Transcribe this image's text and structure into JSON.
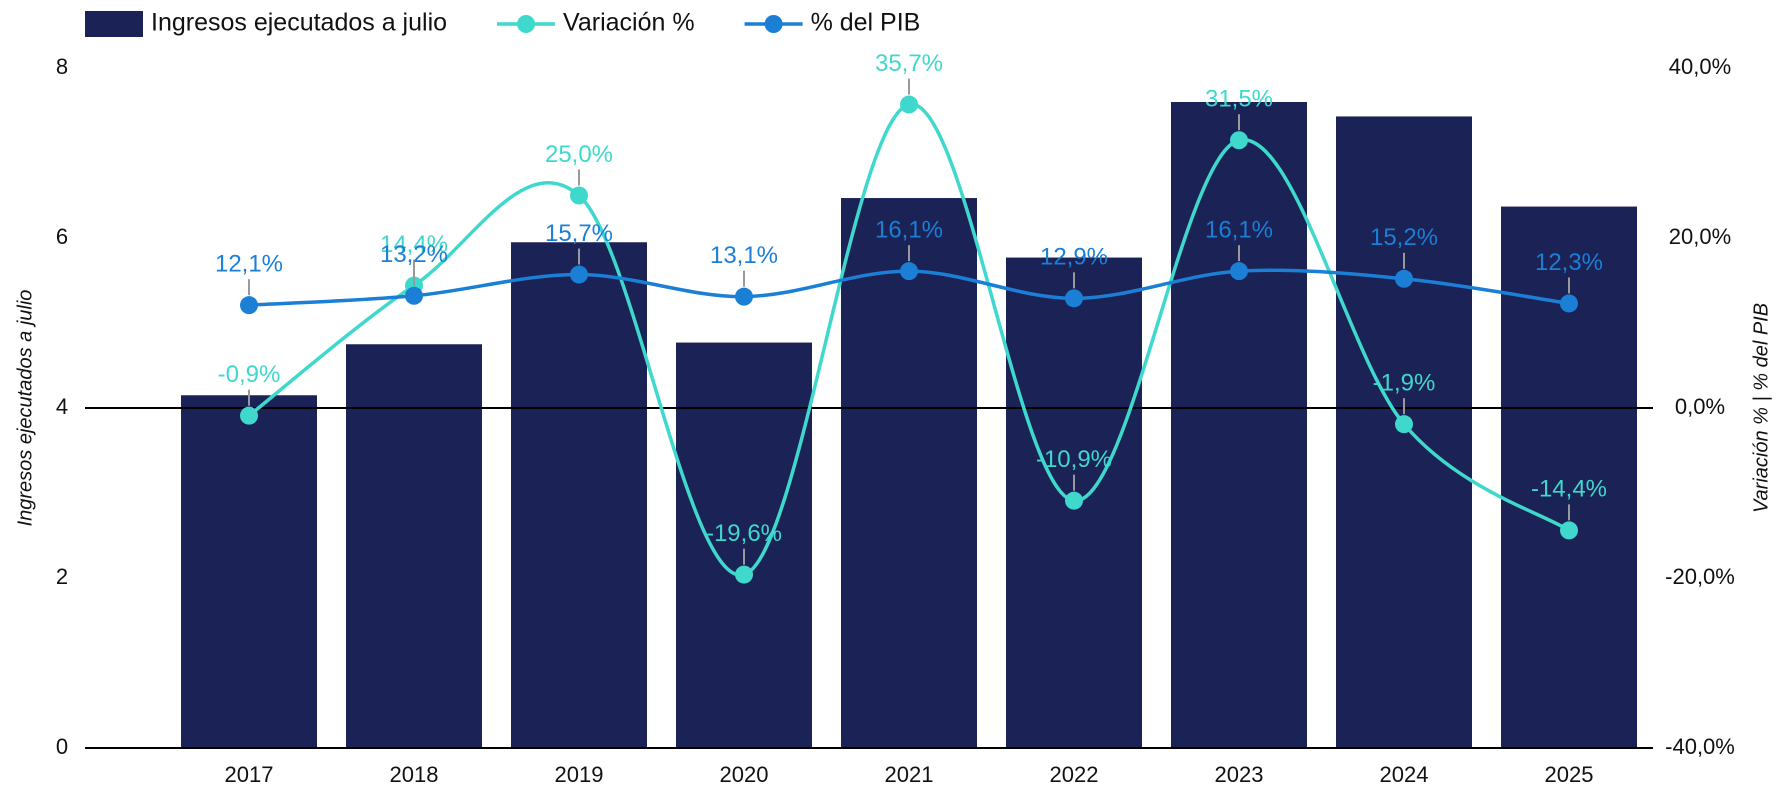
{
  "chart_data": {
    "type": "bar-line",
    "y_label": "Ingresos ejecutados a julio",
    "y2_label": "Variación % | % del PIB",
    "categories": [
      "2017",
      "2018",
      "2019",
      "2020",
      "2021",
      "2022",
      "2023",
      "2024",
      "2025"
    ],
    "ylim": [
      0,
      8
    ],
    "yticks": [
      0,
      2,
      4,
      6,
      8
    ],
    "y2lim": [
      -40,
      40
    ],
    "y2ticks": [
      {
        "value": -40,
        "label": "-40,0%"
      },
      {
        "value": -20,
        "label": "-20,0%"
      },
      {
        "value": 0,
        "label": "0,0%"
      },
      {
        "value": 20,
        "label": "20,0%"
      },
      {
        "value": 40,
        "label": "40,0%"
      }
    ],
    "series": [
      {
        "name": "Ingresos ejecutados a julio",
        "type": "bar",
        "color": "#1b2256",
        "values": [
          4.15,
          4.75,
          5.95,
          4.77,
          6.47,
          5.77,
          7.6,
          7.43,
          6.37
        ]
      },
      {
        "name": "Variación %",
        "type": "line",
        "axis": "y2",
        "color": "#3fd8cc",
        "values": [
          -0.9,
          14.4,
          25.0,
          -19.6,
          35.7,
          -10.9,
          31.5,
          -1.9,
          -14.4
        ],
        "value_labels": [
          "-0,9%",
          "14,4%",
          "25,0%",
          "-19,6%",
          "35,7%",
          "-10,9%",
          "31,5%",
          "-1,9%",
          "-14,4%"
        ]
      },
      {
        "name": "% del PIB",
        "type": "line",
        "axis": "y2",
        "color": "#1b7fd6",
        "values": [
          12.1,
          13.2,
          15.7,
          13.1,
          16.1,
          12.9,
          16.1,
          15.2,
          12.3
        ],
        "value_labels": [
          "12,1%",
          "13,2%",
          "15,7%",
          "13,1%",
          "16,1%",
          "12,9%",
          "16,1%",
          "15,2%",
          "12,3%"
        ]
      }
    ]
  }
}
